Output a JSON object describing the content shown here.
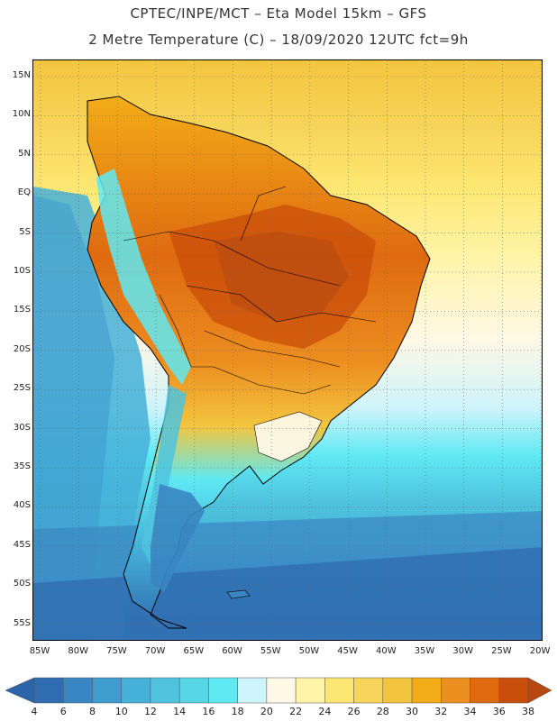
{
  "header": {
    "title_line1": "CPTEC/INPE/MCT –  Eta Model 15km – GFS",
    "title_line2": "2 Metre Temperature (C) – 18/09/2020 12UTC fct=9h"
  },
  "map": {
    "region": "South America",
    "variable": "2 Metre Temperature",
    "units": "C",
    "lat_labels": [
      "15N",
      "10N",
      "5N",
      "EQ",
      "5S",
      "10S",
      "15S",
      "20S",
      "25S",
      "30S",
      "35S",
      "40S",
      "45S",
      "50S",
      "55S"
    ],
    "lon_labels": [
      "85W",
      "80W",
      "75W",
      "70W",
      "65W",
      "60W",
      "55W",
      "50W",
      "45W",
      "40W",
      "35W",
      "30W",
      "25W",
      "20W"
    ]
  },
  "legend": {
    "values": [
      "4",
      "6",
      "8",
      "10",
      "12",
      "14",
      "16",
      "18",
      "20",
      "22",
      "24",
      "26",
      "28",
      "30",
      "32",
      "34",
      "36",
      "38"
    ],
    "colors": [
      "#2f6db0",
      "#3a86c2",
      "#3f9ccf",
      "#45b0d8",
      "#4fc3de",
      "#57d6e6",
      "#5fe9f3",
      "#cdf3fb",
      "#fff8e6",
      "#fff4a8",
      "#fde773",
      "#f7d55a",
      "#f3c53e",
      "#f3ac18",
      "#ec8e20",
      "#df6a10",
      "#c94e0a",
      "#b54a12"
    ],
    "low_arrow_color": "#2b64a8",
    "high_arrow_color": "#b5470f"
  }
}
